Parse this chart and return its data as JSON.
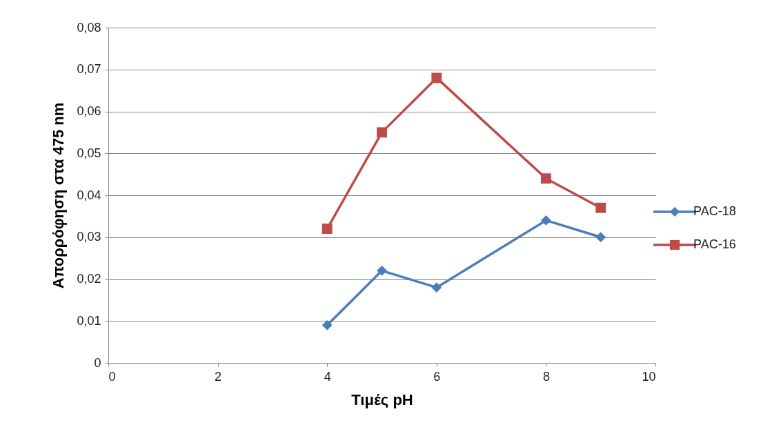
{
  "chart_data": {
    "type": "line",
    "xlabel": "Τιμές pH",
    "ylabel": "Απορρόφηση στα 475 nm",
    "x": [
      4,
      5,
      6,
      8,
      9
    ],
    "series": [
      {
        "name": "PAC-18",
        "color": "#4a7ebb",
        "marker": "diamond",
        "values": [
          0.009,
          0.022,
          0.018,
          0.034,
          0.03
        ]
      },
      {
        "name": "PAC-16",
        "color": "#be4b48",
        "marker": "square",
        "values": [
          0.032,
          0.055,
          0.068,
          0.044,
          0.037
        ]
      }
    ],
    "xlim": [
      0,
      10
    ],
    "xticks": [
      0,
      2,
      4,
      6,
      8,
      10
    ],
    "ylim": [
      0,
      0.08
    ],
    "yticks": [
      0,
      {
        "value": 0.01,
        "label": "0,01"
      },
      {
        "value": 0.02,
        "label": "0,02"
      },
      {
        "value": 0.03,
        "label": "0,03"
      },
      {
        "value": 0.04,
        "label": "0,04"
      },
      {
        "value": 0.05,
        "label": "0,05"
      },
      {
        "value": 0.06,
        "label": "0,06"
      },
      {
        "value": 0.07,
        "label": "0,07"
      },
      {
        "value": 0.08,
        "label": "0,08"
      }
    ],
    "grid": "y",
    "legend": "right",
    "line_style": "solid"
  }
}
